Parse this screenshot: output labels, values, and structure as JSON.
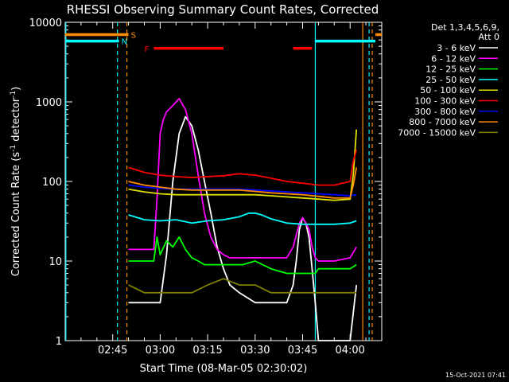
{
  "chart_data": {
    "type": "line",
    "title": "RHESSI Observing Summary Count Rates, Corrected",
    "xlabel": "Start Time (08-Mar-05 02:30:02)",
    "ylabel": "Corrected Count Rate (s⁻¹ detector⁻¹)",
    "ylabel_main": "Corrected Count Rate (s",
    "ylabel_exp1": "-1",
    "ylabel_mid": " detector",
    "ylabel_exp2": "-1",
    "ylabel_end": ")",
    "xlim_minutes_from_start": [
      0,
      100
    ],
    "ylim": [
      1,
      10000
    ],
    "yscale": "log",
    "x_ticks": [
      {
        "label": "02:45",
        "minute": 15
      },
      {
        "label": "03:00",
        "minute": 30
      },
      {
        "label": "03:15",
        "minute": 45
      },
      {
        "label": "03:30",
        "minute": 60
      },
      {
        "label": "03:45",
        "minute": 75
      },
      {
        "label": "04:00",
        "minute": 90
      }
    ],
    "y_ticks": [
      {
        "label": "1",
        "value": 1
      },
      {
        "label": "10",
        "value": 10
      },
      {
        "label": "100",
        "value": 100
      },
      {
        "label": "1000",
        "value": 1000
      },
      {
        "label": "10000",
        "value": 10000
      }
    ],
    "legend_title": [
      "Det 1,3,4,5,6,9,",
      "Att 0"
    ],
    "legend_position": "right",
    "series": [
      {
        "name": "3 - 6 keV",
        "color": "#ffffff",
        "x": [
          20,
          25,
          26,
          27,
          28,
          29,
          30,
          32,
          34,
          36,
          38,
          40,
          42,
          44,
          46,
          48,
          50,
          52,
          55,
          60,
          65,
          70,
          72,
          73,
          74,
          75,
          76,
          77,
          78,
          79,
          80,
          85,
          90,
          92
        ],
        "y": [
          3,
          3,
          3,
          3,
          3,
          3,
          3,
          12,
          100,
          400,
          650,
          500,
          250,
          100,
          40,
          15,
          8,
          5,
          4,
          3,
          3,
          3,
          5,
          10,
          25,
          35,
          30,
          20,
          8,
          3,
          1,
          1,
          1,
          5
        ]
      },
      {
        "name": "6 - 12 keV",
        "color": "#ff00ff",
        "x": [
          20,
          25,
          28,
          29,
          30,
          31,
          32,
          34,
          36,
          38,
          40,
          42,
          44,
          46,
          48,
          50,
          52,
          55,
          60,
          65,
          70,
          72,
          74,
          75,
          76,
          77,
          78,
          79,
          80,
          85,
          90,
          92
        ],
        "y": [
          14,
          14,
          14,
          60,
          400,
          600,
          750,
          900,
          1100,
          800,
          400,
          120,
          40,
          20,
          14,
          12,
          11,
          11,
          11,
          11,
          11,
          15,
          30,
          35,
          30,
          25,
          15,
          11,
          10,
          10,
          11,
          15
        ]
      },
      {
        "name": "12 - 25 keV",
        "color": "#00ff00",
        "x": [
          20,
          25,
          28,
          29,
          30,
          32,
          34,
          36,
          38,
          40,
          42,
          44,
          48,
          52,
          56,
          60,
          65,
          70,
          75,
          79,
          80,
          85,
          90,
          92
        ],
        "y": [
          10,
          10,
          10,
          20,
          12,
          18,
          15,
          20,
          14,
          11,
          10,
          9,
          9,
          9,
          9,
          10,
          8,
          7,
          7,
          7,
          8,
          8,
          8,
          9
        ]
      },
      {
        "name": "25 - 50 keV",
        "color": "#00ffff",
        "x": [
          20,
          25,
          30,
          35,
          40,
          45,
          50,
          55,
          58,
          60,
          62,
          65,
          70,
          75,
          80,
          85,
          90,
          92
        ],
        "y": [
          38,
          33,
          32,
          33,
          30,
          32,
          33,
          36,
          40,
          40,
          38,
          34,
          30,
          29,
          29,
          29,
          30,
          32
        ]
      },
      {
        "name": "50 - 100 keV",
        "color": "#e0e000",
        "x": [
          20,
          25,
          30,
          35,
          40,
          45,
          50,
          55,
          60,
          65,
          70,
          75,
          80,
          85,
          90,
          91,
          92
        ],
        "y": [
          80,
          74,
          70,
          68,
          68,
          68,
          68,
          68,
          68,
          66,
          64,
          62,
          60,
          58,
          60,
          120,
          450
        ]
      },
      {
        "name": "100 - 300 keV",
        "color": "#ff0000",
        "x": [
          20,
          25,
          30,
          35,
          40,
          45,
          50,
          55,
          60,
          65,
          70,
          75,
          80,
          85,
          90,
          91,
          92
        ],
        "y": [
          150,
          130,
          120,
          115,
          112,
          115,
          118,
          125,
          120,
          110,
          100,
          95,
          90,
          90,
          100,
          180,
          250
        ]
      },
      {
        "name": "300 - 800 keV",
        "color": "#0000ff",
        "x": [
          20,
          25,
          30,
          35,
          40,
          45,
          50,
          55,
          60,
          65,
          70,
          75,
          80,
          85,
          90,
          92
        ],
        "y": [
          90,
          85,
          82,
          80,
          80,
          80,
          80,
          80,
          78,
          76,
          74,
          72,
          70,
          68,
          66,
          68
        ]
      },
      {
        "name": "800 - 7000 keV",
        "color": "#ff8c00",
        "x": [
          20,
          25,
          30,
          35,
          40,
          45,
          50,
          55,
          60,
          65,
          70,
          75,
          80,
          85,
          90,
          91,
          92
        ],
        "y": [
          100,
          90,
          85,
          80,
          78,
          78,
          78,
          78,
          75,
          72,
          70,
          68,
          65,
          62,
          62,
          90,
          150
        ]
      },
      {
        "name": "7000 - 15000 keV",
        "color": "#808000",
        "x": [
          20,
          25,
          30,
          35,
          40,
          45,
          50,
          55,
          60,
          65,
          70,
          75,
          80,
          85,
          90,
          92
        ],
        "y": [
          5,
          4,
          4,
          4,
          4,
          5,
          6,
          5,
          5,
          4,
          4,
          4,
          4,
          4,
          4,
          4
        ]
      }
    ],
    "state_bars": [
      {
        "label": "S",
        "color": "#ff8c00",
        "segments": [
          [
            0,
            20
          ],
          [
            98,
            100
          ]
        ],
        "value": 7000
      },
      {
        "label": "N",
        "color": "#00ffff",
        "segments": [
          [
            0,
            17
          ],
          [
            79,
            98
          ]
        ],
        "value": 5800
      },
      {
        "label": "F",
        "color": "#ff0000",
        "segments": [
          [
            28,
            50
          ],
          [
            72,
            78
          ]
        ],
        "value": 4700
      }
    ],
    "vertical_lines": [
      {
        "minute": 0.2,
        "color": "#00ffff",
        "style": "solid"
      },
      {
        "minute": 16.5,
        "color": "#00ffff",
        "style": "dashed"
      },
      {
        "minute": 19.5,
        "color": "#ff8c00",
        "style": "dashed"
      },
      {
        "minute": 79,
        "color": "#00ffff",
        "style": "solid"
      },
      {
        "minute": 94,
        "color": "#ff8c00",
        "style": "solid"
      },
      {
        "minute": 96,
        "color": "#00ffff",
        "style": "dashed"
      },
      {
        "minute": 97,
        "color": "#ff8c00",
        "style": "dashed"
      }
    ],
    "grid": false
  },
  "footer": {
    "date_stamp": "15-Oct-2021 07:41"
  }
}
